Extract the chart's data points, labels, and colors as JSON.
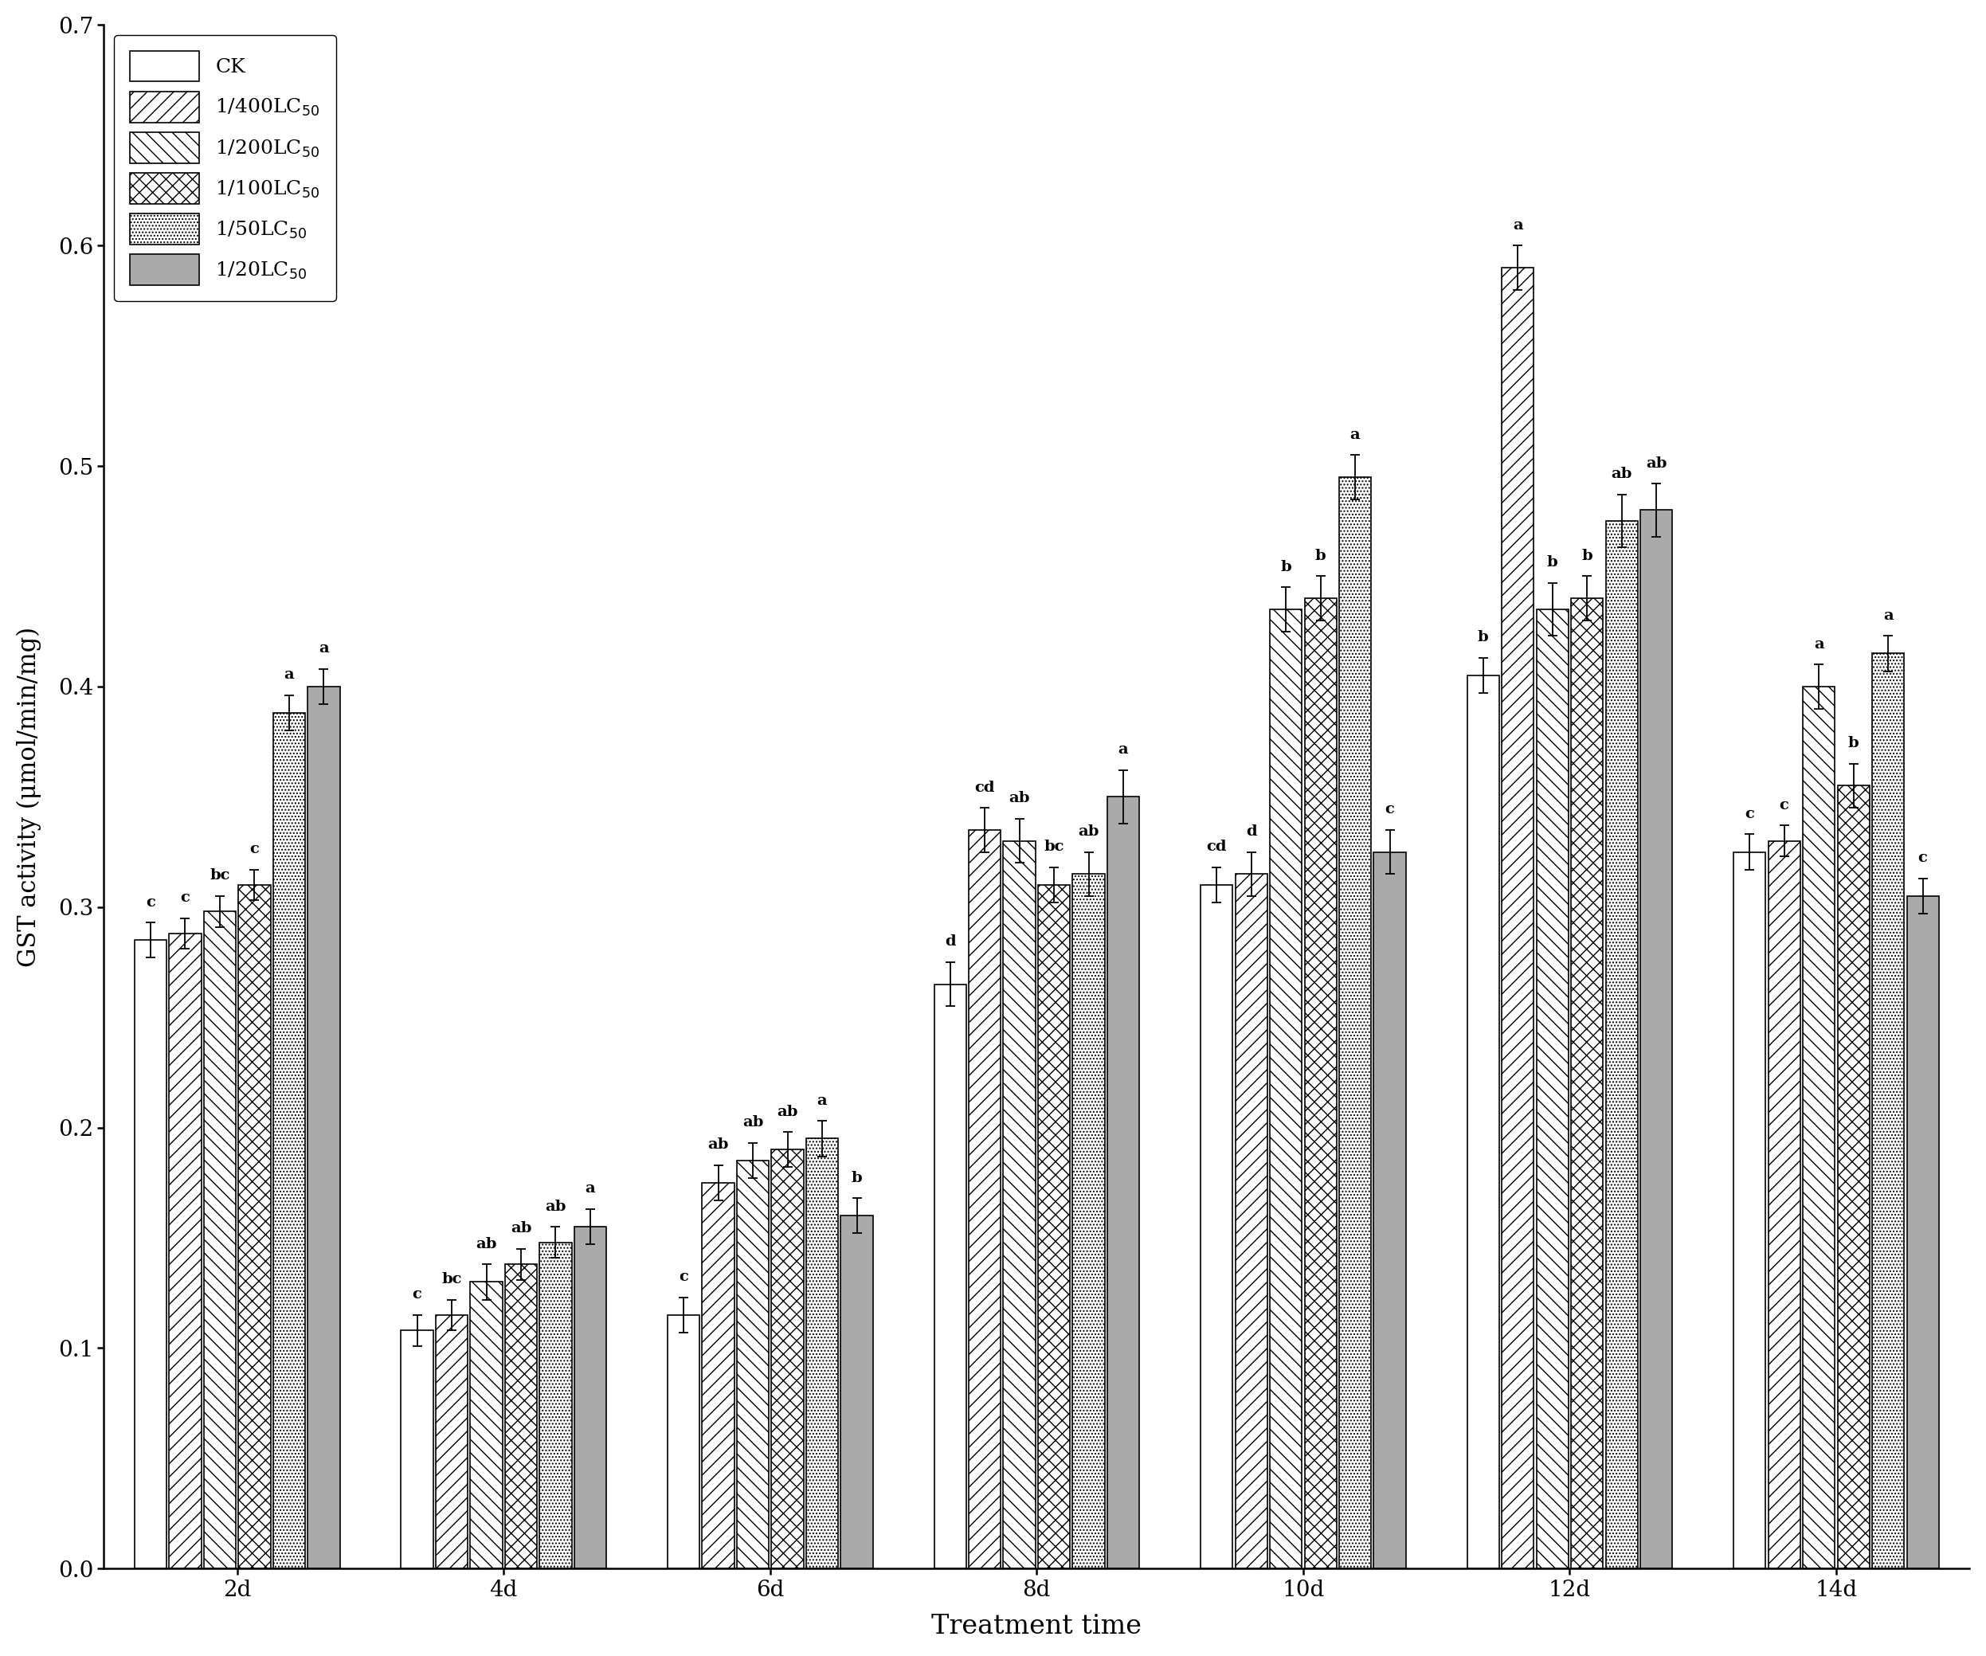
{
  "time_points": [
    "2d",
    "4d",
    "6d",
    "8d",
    "10d",
    "12d",
    "14d"
  ],
  "series_labels": [
    "CK",
    "1/400LC$_{50}$",
    "1/200LC$_{50}$",
    "1/100LC$_{50}$",
    "1/50LC$_{50}$",
    "1/20LC$_{50}$"
  ],
  "values": {
    "CK": [
      0.285,
      0.108,
      0.115,
      0.265,
      0.31,
      0.405,
      0.325
    ],
    "1/400": [
      0.288,
      0.115,
      0.175,
      0.335,
      0.315,
      0.59,
      0.33
    ],
    "1/200": [
      0.298,
      0.13,
      0.185,
      0.33,
      0.435,
      0.435,
      0.4
    ],
    "1/100": [
      0.31,
      0.138,
      0.19,
      0.31,
      0.44,
      0.44,
      0.355
    ],
    "1/50": [
      0.388,
      0.148,
      0.195,
      0.315,
      0.495,
      0.475,
      0.415
    ],
    "1/20": [
      0.4,
      0.155,
      0.16,
      0.35,
      0.325,
      0.48,
      0.305
    ]
  },
  "errors": {
    "CK": [
      0.008,
      0.007,
      0.008,
      0.01,
      0.008,
      0.008,
      0.008
    ],
    "1/400": [
      0.007,
      0.007,
      0.008,
      0.01,
      0.01,
      0.01,
      0.007
    ],
    "1/200": [
      0.007,
      0.008,
      0.008,
      0.01,
      0.01,
      0.012,
      0.01
    ],
    "1/100": [
      0.007,
      0.007,
      0.008,
      0.008,
      0.01,
      0.01,
      0.01
    ],
    "1/50": [
      0.008,
      0.007,
      0.008,
      0.01,
      0.01,
      0.012,
      0.008
    ],
    "1/20": [
      0.008,
      0.008,
      0.008,
      0.012,
      0.01,
      0.012,
      0.008
    ]
  },
  "letter_labels": {
    "CK": [
      "c",
      "c",
      "c",
      "d",
      "cd",
      "b",
      "c"
    ],
    "1/400": [
      "c",
      "bc",
      "ab",
      "cd",
      "d",
      "a",
      "c"
    ],
    "1/200": [
      "bc",
      "ab",
      "ab",
      "ab",
      "b",
      "b",
      "a"
    ],
    "1/100": [
      "c",
      "ab",
      "ab",
      "bc",
      "b",
      "b",
      "b"
    ],
    "1/50": [
      "a",
      "ab",
      "a",
      "ab",
      "a",
      "ab",
      "a"
    ],
    "1/20": [
      "a",
      "a",
      "b",
      "a",
      "c",
      "ab",
      "c"
    ]
  },
  "bar_width": 0.12,
  "ylim": [
    0.0,
    0.7
  ],
  "yticks": [
    0.0,
    0.1,
    0.2,
    0.3,
    0.4,
    0.5,
    0.6,
    0.7
  ],
  "ylabel": "GST activity (μmol/min/mg)",
  "xlabel": "Treatment time",
  "label_fontsize": 22,
  "tick_fontsize": 20,
  "legend_fontsize": 18,
  "letter_fontsize": 14
}
